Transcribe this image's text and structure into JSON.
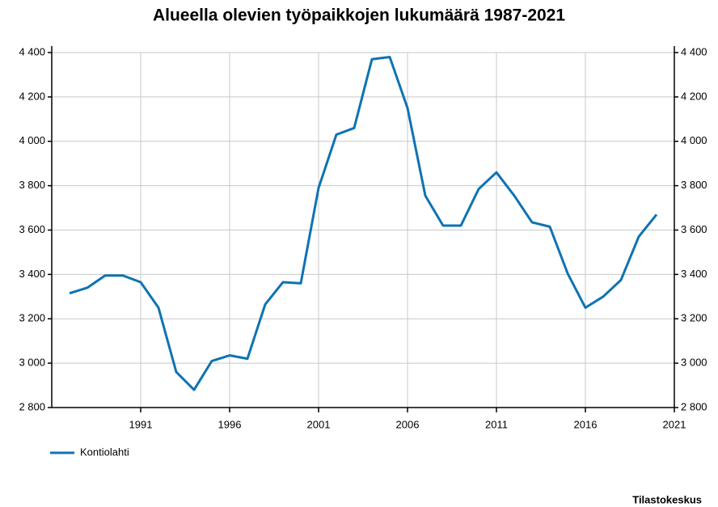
{
  "chart_data": {
    "type": "line",
    "title": "Alueella olevien työpaikkojen lukumäärä 1987-2021",
    "source": "Tilastokeskus",
    "x": [
      1987,
      1988,
      1989,
      1990,
      1991,
      1992,
      1993,
      1994,
      1995,
      1996,
      1997,
      1998,
      1999,
      2000,
      2001,
      2002,
      2003,
      2004,
      2005,
      2006,
      2007,
      2008,
      2009,
      2010,
      2011,
      2012,
      2013,
      2014,
      2015,
      2016,
      2017,
      2018,
      2019,
      2020
    ],
    "series": [
      {
        "name": "Kontiolahti",
        "color": "#0e73b2",
        "values": [
          3315,
          3340,
          3395,
          3395,
          3365,
          3250,
          2960,
          2880,
          3010,
          3035,
          3020,
          3265,
          3365,
          3360,
          3790,
          4030,
          4060,
          4370,
          4380,
          4150,
          3755,
          3620,
          3620,
          3785,
          3860,
          3755,
          3635,
          3615,
          3405,
          3250,
          3300,
          3375,
          3570,
          3670
        ]
      }
    ],
    "xlim": [
      1986,
      2021
    ],
    "xticks": [
      1991,
      1996,
      2001,
      2006,
      2011,
      2016,
      2021
    ],
    "ylim": [
      2800,
      4400
    ],
    "yticks": [
      {
        "value": 2800,
        "label": "2 800"
      },
      {
        "value": 3000,
        "label": "3 000"
      },
      {
        "value": 3200,
        "label": "3 200"
      },
      {
        "value": 3400,
        "label": "3 400"
      },
      {
        "value": 3600,
        "label": "3 600"
      },
      {
        "value": 3800,
        "label": "3 800"
      },
      {
        "value": 4000,
        "label": "4 000"
      },
      {
        "value": 4200,
        "label": "4 200"
      },
      {
        "value": 4400,
        "label": "4 400"
      }
    ],
    "grid": true
  }
}
